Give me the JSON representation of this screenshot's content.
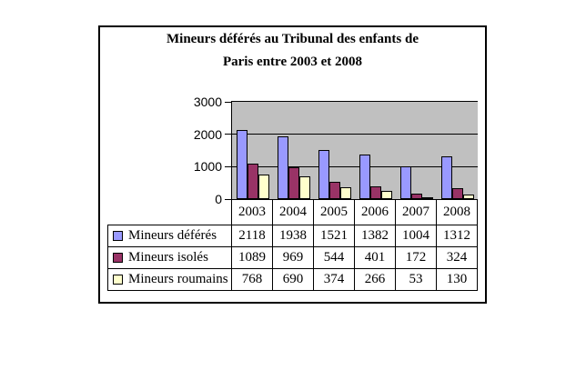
{
  "title": {
    "line1": "Mineurs déférés au Tribunal des enfants de",
    "line2": "Paris entre 2003 et 2008"
  },
  "chart_data": {
    "type": "bar",
    "title": "Mineurs déférés au Tribunal des enfants de Paris entre 2003 et 2008",
    "categories": [
      "2003",
      "2004",
      "2005",
      "2006",
      "2007",
      "2008"
    ],
    "series": [
      {
        "name": "Mineurs déférés",
        "color": "#9999ff",
        "values": [
          2118,
          1938,
          1521,
          1382,
          1004,
          1312
        ]
      },
      {
        "name": "Mineurs isolés",
        "color": "#993366",
        "values": [
          1089,
          969,
          544,
          401,
          172,
          324
        ]
      },
      {
        "name": "Mineurs roumains",
        "color": "#ffffcc",
        "values": [
          768,
          690,
          374,
          266,
          53,
          130
        ]
      }
    ],
    "xlabel": "",
    "ylabel": "",
    "ylim": [
      0,
      3000
    ],
    "yticks": [
      0,
      1000,
      2000,
      3000
    ],
    "grid": true,
    "plot_background": "#c0c0c0",
    "bar_border_color": "#000000",
    "legend_position": "table-left"
  }
}
